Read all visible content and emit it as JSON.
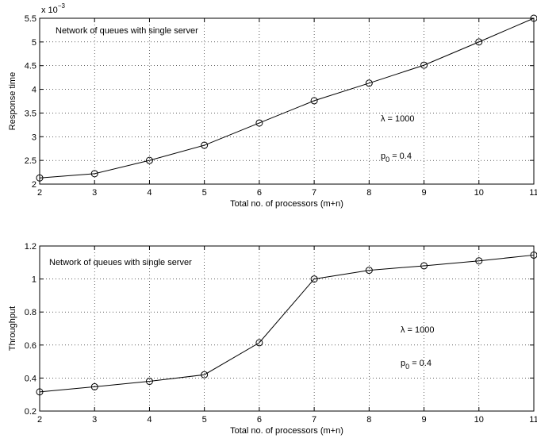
{
  "chart_data": [
    {
      "type": "line",
      "title": "",
      "xlabel": "Total no. of processors (m+n)",
      "ylabel": "Response time",
      "y_exponent_label": "x 10",
      "y_exponent_power": "−3",
      "xlim": [
        2,
        11
      ],
      "ylim": [
        2,
        5.5
      ],
      "xticks": [
        2,
        3,
        4,
        5,
        6,
        7,
        8,
        9,
        10,
        11
      ],
      "yticks": [
        2,
        2.5,
        3,
        3.5,
        4,
        4.5,
        5,
        5.5
      ],
      "ytick_labels": [
        "2",
        "2.5",
        "3",
        "3.5",
        "4",
        "4.5",
        "5",
        "5.5"
      ],
      "grid": true,
      "x": [
        2,
        3,
        4,
        5,
        6,
        7,
        8,
        9,
        10,
        11
      ],
      "series": [
        {
          "values": [
            2.13,
            2.22,
            2.5,
            2.82,
            3.29,
            3.76,
            4.13,
            4.51,
            5.0,
            5.5
          ]
        }
      ],
      "annotations": {
        "label": "Network of queues with single server",
        "lambda_symbol": "λ",
        "lambda_value": " = 1000",
        "p_main": "p",
        "p_sub": "0",
        "p_value": " = 0.4"
      }
    },
    {
      "type": "line",
      "title": "",
      "xlabel": "Total no. of processors (m+n)",
      "ylabel": "Throughput",
      "xlim": [
        2,
        11
      ],
      "ylim": [
        0.2,
        1.2
      ],
      "xticks": [
        2,
        3,
        4,
        5,
        6,
        7,
        8,
        9,
        10,
        11
      ],
      "yticks": [
        0.2,
        0.4,
        0.6,
        0.8,
        1,
        1.2
      ],
      "ytick_labels": [
        "0.2",
        "0.4",
        "0.6",
        "0.8",
        "1",
        "1.2"
      ],
      "grid": true,
      "x": [
        2,
        3,
        4,
        5,
        6,
        7,
        8,
        9,
        10,
        11
      ],
      "series": [
        {
          "values": [
            0.316,
            0.347,
            0.38,
            0.42,
            0.614,
            1.0,
            1.053,
            1.08,
            1.11,
            1.145
          ]
        }
      ],
      "annotations": {
        "label": "Network of queues with single server",
        "lambda_symbol": "λ",
        "lambda_value": " = 1000",
        "p_main": "p",
        "p_sub": "0",
        "p_value": " = 0.4"
      }
    }
  ]
}
